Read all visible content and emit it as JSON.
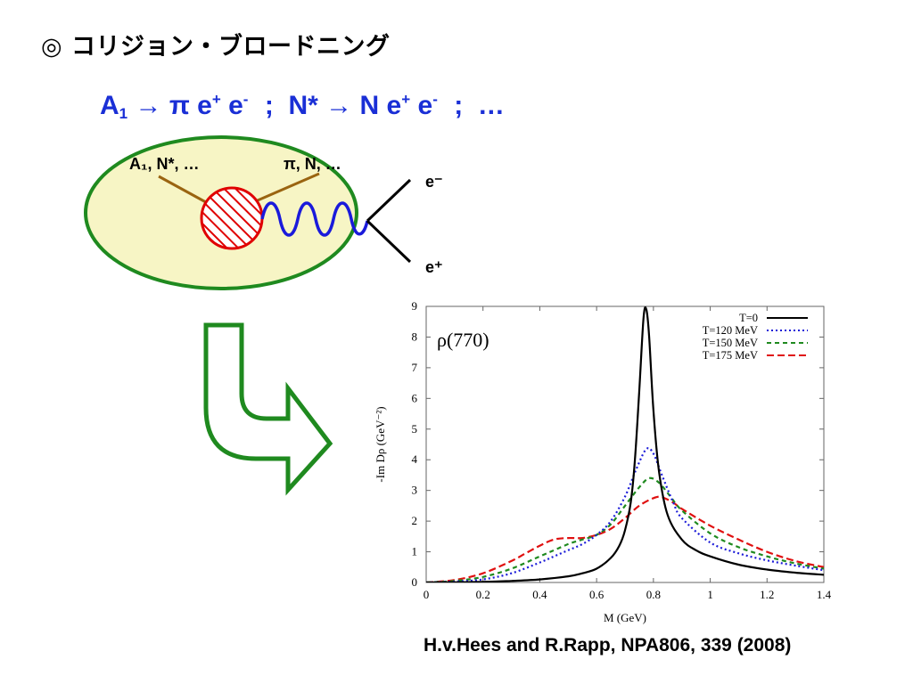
{
  "slide": {
    "title": "◎ コリジョン・ブロードニング",
    "reaction": {
      "a_sym": "A",
      "a_sub": "1",
      "arrow1": "→",
      "pi": "π",
      "e": "e",
      "plus": "+",
      "minus": "-",
      "sep": ";",
      "nstar": "N*",
      "arrow2": "→",
      "n": "N",
      "ellipsis": "…"
    },
    "citation": "H.v.Hees and R.Rapp, NPA806, 339 (2008)"
  },
  "diagram": {
    "label_left": "A₁, N*, …",
    "label_right": "π, N, …",
    "label_eminus": "e⁻",
    "label_eplus": "e⁺",
    "colors": {
      "ellipse_fill": "#f7f5c5",
      "ellipse_stroke": "#1f8a1f",
      "blob_stroke": "#e00000",
      "hadron_line": "#9a6410",
      "photon": "#1a1adb",
      "arrow": "#1f8a1f"
    }
  },
  "chart_data": {
    "type": "line",
    "title": "ρ(770)",
    "xlabel": "M (GeV)",
    "ylabel": "-Im Dρ (GeV⁻²)",
    "xlim": [
      0,
      1.4
    ],
    "ylim": [
      0,
      9
    ],
    "xticks": [
      "0",
      "0.2",
      "0.4",
      "0.6",
      "0.8",
      "1",
      "1.2",
      "1.4"
    ],
    "yticks": [
      "0",
      "1",
      "2",
      "3",
      "4",
      "5",
      "6",
      "7",
      "8",
      "9"
    ],
    "legend_position": "top-right",
    "series": [
      {
        "name": "T=0",
        "color": "#000000",
        "dash": "",
        "points": [
          [
            0,
            0
          ],
          [
            0.2,
            0.02
          ],
          [
            0.3,
            0.05
          ],
          [
            0.4,
            0.1
          ],
          [
            0.5,
            0.2
          ],
          [
            0.55,
            0.3
          ],
          [
            0.6,
            0.45
          ],
          [
            0.65,
            0.8
          ],
          [
            0.68,
            1.2
          ],
          [
            0.7,
            1.7
          ],
          [
            0.72,
            2.6
          ],
          [
            0.735,
            4.0
          ],
          [
            0.75,
            6.2
          ],
          [
            0.765,
            8.6
          ],
          [
            0.775,
            8.9
          ],
          [
            0.785,
            8.0
          ],
          [
            0.8,
            5.6
          ],
          [
            0.82,
            3.6
          ],
          [
            0.85,
            2.2
          ],
          [
            0.9,
            1.4
          ],
          [
            0.95,
            1.05
          ],
          [
            1.0,
            0.85
          ],
          [
            1.1,
            0.58
          ],
          [
            1.2,
            0.42
          ],
          [
            1.3,
            0.32
          ],
          [
            1.4,
            0.25
          ]
        ]
      },
      {
        "name": "T=120 MeV",
        "color": "#1b1bd8",
        "dash": "2,3",
        "points": [
          [
            0,
            0
          ],
          [
            0.1,
            0.03
          ],
          [
            0.2,
            0.1
          ],
          [
            0.3,
            0.3
          ],
          [
            0.4,
            0.65
          ],
          [
            0.45,
            0.85
          ],
          [
            0.5,
            1.05
          ],
          [
            0.55,
            1.25
          ],
          [
            0.6,
            1.55
          ],
          [
            0.65,
            2.0
          ],
          [
            0.7,
            2.8
          ],
          [
            0.74,
            3.7
          ],
          [
            0.775,
            4.35
          ],
          [
            0.8,
            4.2
          ],
          [
            0.83,
            3.5
          ],
          [
            0.87,
            2.6
          ],
          [
            0.9,
            2.1
          ],
          [
            1.0,
            1.3
          ],
          [
            1.1,
            0.95
          ],
          [
            1.2,
            0.72
          ],
          [
            1.3,
            0.55
          ],
          [
            1.4,
            0.4
          ]
        ]
      },
      {
        "name": "T=150 MeV",
        "color": "#1f8a1f",
        "dash": "5,4",
        "points": [
          [
            0,
            0
          ],
          [
            0.1,
            0.05
          ],
          [
            0.2,
            0.18
          ],
          [
            0.3,
            0.45
          ],
          [
            0.4,
            0.85
          ],
          [
            0.45,
            1.05
          ],
          [
            0.5,
            1.25
          ],
          [
            0.55,
            1.4
          ],
          [
            0.6,
            1.55
          ],
          [
            0.65,
            1.9
          ],
          [
            0.7,
            2.5
          ],
          [
            0.75,
            3.1
          ],
          [
            0.785,
            3.4
          ],
          [
            0.82,
            3.25
          ],
          [
            0.86,
            2.8
          ],
          [
            0.9,
            2.35
          ],
          [
            1.0,
            1.6
          ],
          [
            1.1,
            1.15
          ],
          [
            1.2,
            0.85
          ],
          [
            1.3,
            0.62
          ],
          [
            1.4,
            0.45
          ]
        ]
      },
      {
        "name": "T=175 MeV",
        "color": "#e01010",
        "dash": "8,4",
        "points": [
          [
            0,
            0
          ],
          [
            0.1,
            0.08
          ],
          [
            0.2,
            0.3
          ],
          [
            0.3,
            0.7
          ],
          [
            0.35,
            0.95
          ],
          [
            0.4,
            1.2
          ],
          [
            0.45,
            1.4
          ],
          [
            0.5,
            1.45
          ],
          [
            0.55,
            1.45
          ],
          [
            0.6,
            1.55
          ],
          [
            0.65,
            1.75
          ],
          [
            0.7,
            2.1
          ],
          [
            0.75,
            2.5
          ],
          [
            0.8,
            2.75
          ],
          [
            0.83,
            2.78
          ],
          [
            0.87,
            2.6
          ],
          [
            0.9,
            2.4
          ],
          [
            1.0,
            1.85
          ],
          [
            1.1,
            1.4
          ],
          [
            1.2,
            1.0
          ],
          [
            1.3,
            0.7
          ],
          [
            1.4,
            0.5
          ]
        ]
      }
    ]
  }
}
